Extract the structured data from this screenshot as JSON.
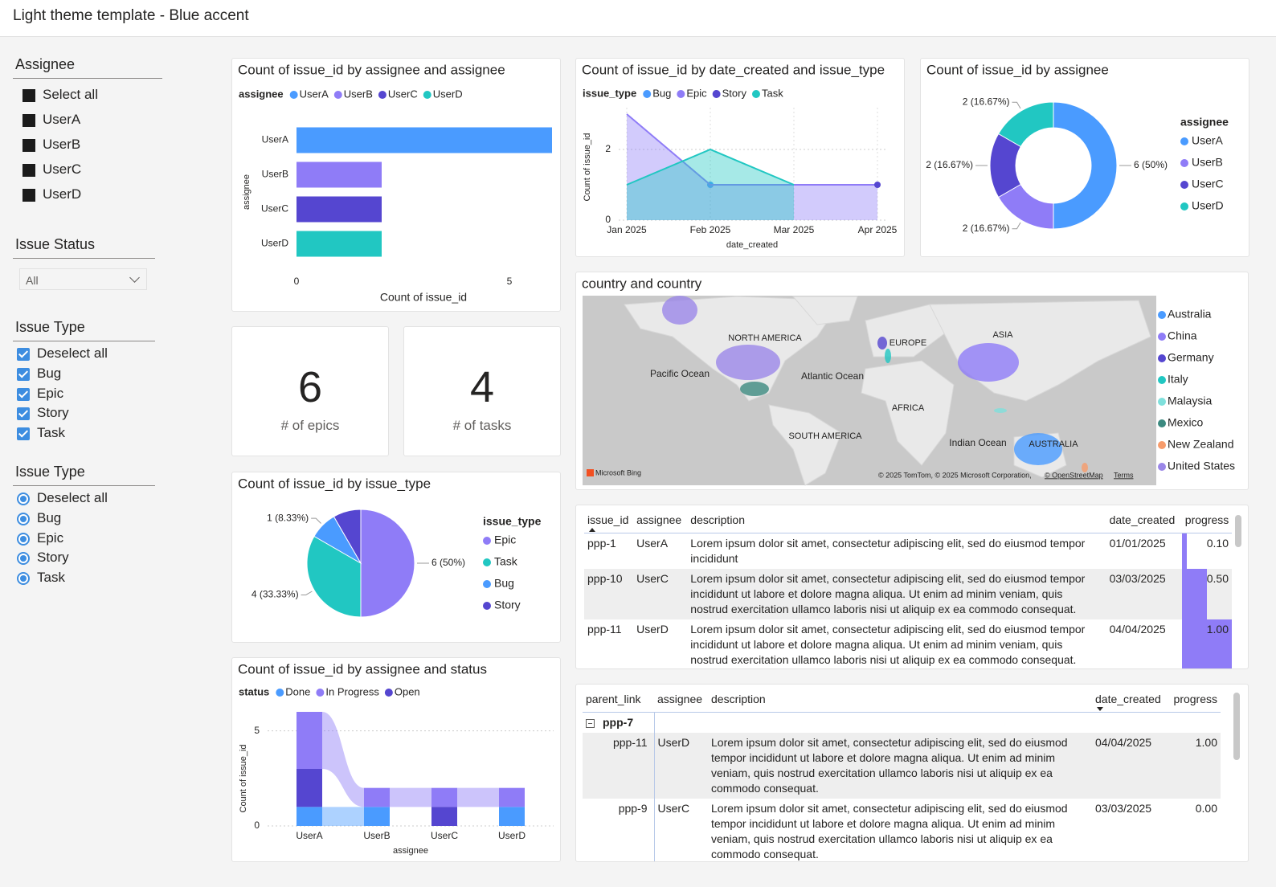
{
  "header": {
    "title": "Light theme template - Blue accent"
  },
  "slicers": [
    {
      "title": "Assignee",
      "kind": "tiles",
      "items": [
        "Select all",
        "UserA",
        "UserB",
        "UserC",
        "UserD"
      ]
    },
    {
      "title": "Issue Status",
      "kind": "dropdown",
      "value": "All"
    },
    {
      "title": "Issue Type",
      "kind": "checkbox",
      "items": [
        "Deselect all",
        "Bug",
        "Epic",
        "Story",
        "Task"
      ]
    },
    {
      "title": "Issue Type",
      "kind": "radio",
      "items": [
        "Deselect all",
        "Bug",
        "Epic",
        "Story",
        "Task"
      ]
    }
  ],
  "cards": [
    {
      "value": 6,
      "label": "# of epics"
    },
    {
      "value": 4,
      "label": "# of tasks"
    }
  ],
  "chart_data": [
    {
      "type": "hbar",
      "title": "Count of issue_id by assignee and assignee",
      "legend_title": "assignee",
      "categories": [
        "UserA",
        "UserB",
        "UserC",
        "UserD"
      ],
      "values": [
        6,
        2,
        2,
        2
      ],
      "colors": [
        "#4a9bff",
        "#8f7cf7",
        "#5546d0",
        "#21c7c2"
      ],
      "x_label": "Count of issue_id",
      "y_label": "assignee",
      "xlim": [
        0,
        6
      ],
      "xticks": [
        0,
        5
      ],
      "grid": false
    },
    {
      "type": "area",
      "title": "Count of issue_id by date_created and issue_type",
      "legend_title": "issue_type",
      "categories": [
        "Jan 2025",
        "Feb 2025",
        "Mar 2025",
        "Apr 2025"
      ],
      "series": [
        {
          "name": "Bug",
          "color": "#4a9bff",
          "values": [
            null,
            1,
            null,
            null
          ]
        },
        {
          "name": "Epic",
          "color": "#8f7cf7",
          "values": [
            3,
            1,
            1,
            1
          ]
        },
        {
          "name": "Story",
          "color": "#5546d0",
          "values": [
            null,
            null,
            null,
            1
          ]
        },
        {
          "name": "Task",
          "color": "#21c7c2",
          "values": [
            1,
            2,
            1,
            null
          ]
        }
      ],
      "x_label": "date_created",
      "y_label": "Count of issue_id",
      "ylim": [
        0,
        3
      ],
      "yticks": [
        0,
        2
      ],
      "grid": true
    },
    {
      "type": "donut",
      "title": "Count of issue_id by assignee",
      "legend_title": "assignee",
      "categories": [
        "UserA",
        "UserB",
        "UserC",
        "UserD"
      ],
      "values": [
        6,
        2,
        2,
        2
      ],
      "value_labels": [
        "6 (50%)",
        "2 (16.67%)",
        "2 (16.67%)",
        "2 (16.67%)"
      ],
      "colors": [
        "#4a9bff",
        "#8f7cf7",
        "#5546d0",
        "#21c7c2"
      ]
    },
    {
      "type": "pie",
      "title": "Count of issue_id by issue_type",
      "legend_title": "issue_type",
      "categories": [
        "Epic",
        "Task",
        "Bug",
        "Story"
      ],
      "values": [
        6,
        4,
        1,
        1
      ],
      "value_labels": [
        "6 (50%)",
        "4 (33.33%)",
        "1 (8.33%)",
        null
      ],
      "colors": [
        "#8f7cf7",
        "#21c7c2",
        "#4a9bff",
        "#5546d0"
      ]
    },
    {
      "type": "ribbon",
      "title": "Count of issue_id by assignee and status",
      "legend_title": "status",
      "categories": [
        "UserA",
        "UserB",
        "UserC",
        "UserD"
      ],
      "series": [
        {
          "name": "Done",
          "color": "#4a9bff",
          "values": [
            1,
            1,
            null,
            1
          ]
        },
        {
          "name": "In Progress",
          "color": "#8f7cf7",
          "values": [
            3,
            1,
            1,
            1
          ]
        },
        {
          "name": "Open",
          "color": "#5546d0",
          "values": [
            2,
            null,
            1,
            null
          ]
        }
      ],
      "x_label": "assignee",
      "y_label": "Count of issue_id",
      "ylim": [
        0,
        6
      ],
      "yticks": [
        0,
        5
      ],
      "grid": true
    },
    {
      "type": "map",
      "title": "country and country",
      "categories": [
        "Australia",
        "China",
        "Germany",
        "Italy",
        "Malaysia",
        "Mexico",
        "New Zealand",
        "United States"
      ],
      "colors": [
        "#4a9bff",
        "#8f7cf7",
        "#5546d0",
        "#21c7c2",
        "#7fe0dc",
        "#3c8a80",
        "#f79c6c",
        "#9b87e8"
      ],
      "map_labels": [
        "NORTH AMERICA",
        "EUROPE",
        "ASIA",
        "Pacific Ocean",
        "Atlantic Ocean",
        "AFRICA",
        "SOUTH AMERICA",
        "Indian Ocean",
        "AUSTRALIA"
      ],
      "attribution": [
        "Microsoft Bing",
        "© 2025 TomTom, © 2025 Microsoft Corporation,",
        "© OpenStreetMap",
        "Terms"
      ]
    }
  ],
  "tables": [
    {
      "columns": [
        "issue_id",
        "assignee",
        "description",
        "date_created",
        "progress"
      ],
      "rows": [
        [
          "ppp-1",
          "UserA",
          "Lorem ipsum dolor sit amet, consectetur adipiscing elit, sed do eiusmod tempor incididunt",
          "01/01/2025",
          "0.10"
        ],
        [
          "ppp-10",
          "UserC",
          "Lorem ipsum dolor sit amet, consectetur adipiscing elit, sed do eiusmod tempor incididunt ut labore et dolore magna aliqua. Ut enim ad minim veniam, quis nostrud exercitation ullamco laboris nisi ut aliquip ex ea commodo consequat.",
          "03/03/2025",
          "0.50"
        ],
        [
          "ppp-11",
          "UserD",
          "Lorem ipsum dolor sit amet, consectetur adipiscing elit, sed do eiusmod tempor incididunt ut labore et dolore magna aliqua. Ut enim ad minim veniam, quis nostrud exercitation ullamco laboris nisi ut aliquip ex ea commodo consequat.",
          "04/04/2025",
          "1.00"
        ]
      ]
    },
    {
      "columns": [
        "parent_link",
        "assignee",
        "description",
        "date_created",
        "progress"
      ],
      "groups": [
        {
          "label": "ppp-7",
          "rows": [
            [
              "ppp-11",
              "UserD",
              "Lorem ipsum dolor sit amet, consectetur adipiscing elit, sed do eiusmod tempor incididunt ut labore et dolore magna aliqua. Ut enim ad minim veniam, quis nostrud exercitation ullamco laboris nisi ut aliquip ex ea commodo consequat.",
              "04/04/2025",
              "1.00"
            ],
            [
              "ppp-9",
              "UserC",
              "Lorem ipsum dolor sit amet, consectetur adipiscing elit, sed do eiusmod tempor incididunt ut labore et dolore magna aliqua. Ut enim ad minim veniam, quis nostrud exercitation ullamco laboris nisi ut aliquip ex ea commodo consequat.",
              "03/03/2025",
              "0.00"
            ]
          ]
        }
      ]
    }
  ]
}
